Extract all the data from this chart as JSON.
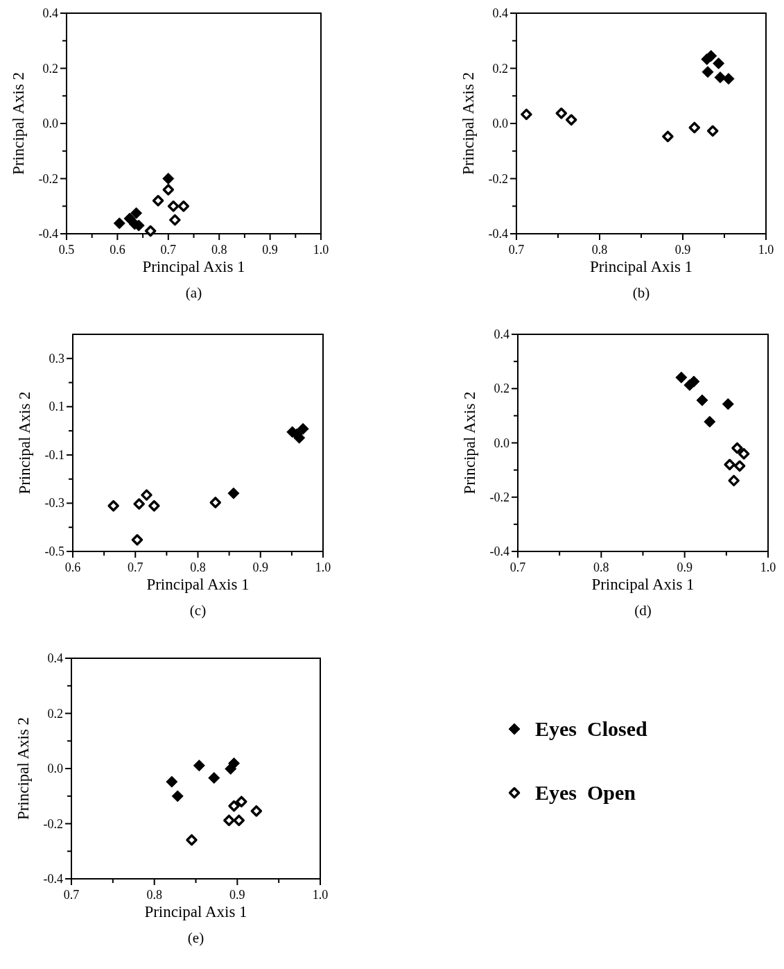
{
  "chart_data": [
    {
      "type": "scatter",
      "title": "(a)",
      "xlabel": "Principal Axis 1",
      "ylabel": "Principal Axis 2",
      "xlim": [
        0.5,
        1.0
      ],
      "ylim": [
        -0.4,
        0.4
      ],
      "marker": "diamond",
      "xticks": [
        {
          "value": 0.5,
          "label": "0.5"
        },
        {
          "value": 0.55,
          "label": null
        },
        {
          "value": 0.6,
          "label": "0.6"
        },
        {
          "value": 0.65,
          "label": null
        },
        {
          "value": 0.7,
          "label": "0.7"
        },
        {
          "value": 0.75,
          "label": null
        },
        {
          "value": 0.8,
          "label": "0.8"
        },
        {
          "value": 0.85,
          "label": null
        },
        {
          "value": 0.9,
          "label": "0.9"
        },
        {
          "value": 0.95,
          "label": null
        },
        {
          "value": 1.0,
          "label": "1.0"
        }
      ],
      "yticks": [
        {
          "value": -0.4,
          "label": "-0.4"
        },
        {
          "value": -0.3,
          "label": null
        },
        {
          "value": -0.2,
          "label": "-0.2"
        },
        {
          "value": -0.1,
          "label": null
        },
        {
          "value": 0,
          "label": "0.0"
        },
        {
          "value": 0.1,
          "label": null
        },
        {
          "value": 0.2,
          "label": "0.2"
        },
        {
          "value": 0.3,
          "label": null
        },
        {
          "value": 0.4,
          "label": "0.4"
        }
      ],
      "series": [
        {
          "color": "#000000",
          "x": [
            0.604,
            0.624,
            0.637,
            0.634,
            0.642,
            0.7
          ],
          "values": [
            -0.362,
            -0.345,
            -0.325,
            -0.365,
            -0.37,
            -0.2
          ]
        },
        {
          "color": "#000000",
          "x": [
            0.68,
            0.7,
            0.71,
            0.73,
            0.713,
            0.665
          ],
          "values": [
            -0.28,
            -0.24,
            -0.3,
            -0.3,
            -0.35,
            -0.39
          ]
        }
      ]
    },
    {
      "type": "scatter",
      "title": "(b)",
      "xlabel": "Principal Axis 1",
      "ylabel": "Principal Axis 2",
      "xlim": [
        0.7,
        1.0
      ],
      "ylim": [
        -0.4,
        0.4
      ],
      "marker": "diamond",
      "xticks": [
        {
          "value": 0.7,
          "label": "0.7"
        },
        {
          "value": 0.75,
          "label": null
        },
        {
          "value": 0.8,
          "label": "0.8"
        },
        {
          "value": 0.85,
          "label": null
        },
        {
          "value": 0.9,
          "label": "0.9"
        },
        {
          "value": 0.95,
          "label": null
        },
        {
          "value": 1.0,
          "label": "1.0"
        }
      ],
      "yticks": [
        {
          "value": -0.4,
          "label": "-0.4"
        },
        {
          "value": -0.3,
          "label": null
        },
        {
          "value": -0.2,
          "label": "-0.2"
        },
        {
          "value": -0.1,
          "label": null
        },
        {
          "value": 0,
          "label": "0.0"
        },
        {
          "value": 0.1,
          "label": null
        },
        {
          "value": 0.2,
          "label": "0.2"
        },
        {
          "value": 0.3,
          "label": null
        },
        {
          "value": 0.4,
          "label": "0.4"
        }
      ],
      "series": [
        {
          "color": "#000000",
          "x": [
            0.929,
            0.934,
            0.943,
            0.93,
            0.945,
            0.955
          ],
          "values": [
            0.233,
            0.245,
            0.218,
            0.187,
            0.167,
            0.162
          ]
        },
        {
          "color": "#000000",
          "x": [
            0.712,
            0.754,
            0.766,
            0.882,
            0.914,
            0.936
          ],
          "values": [
            0.033,
            0.037,
            0.013,
            -0.047,
            -0.015,
            -0.027
          ]
        }
      ]
    },
    {
      "type": "scatter",
      "title": "(c)",
      "xlabel": "Principal Axis 1",
      "ylabel": "Principal Axis 2",
      "xlim": [
        0.6,
        1.0
      ],
      "ylim": [
        -0.5,
        0.4
      ],
      "marker": "diamond",
      "xticks": [
        {
          "value": 0.6,
          "label": "0.6"
        },
        {
          "value": 0.65,
          "label": null
        },
        {
          "value": 0.7,
          "label": "0.7"
        },
        {
          "value": 0.75,
          "label": null
        },
        {
          "value": 0.8,
          "label": "0.8"
        },
        {
          "value": 0.85,
          "label": null
        },
        {
          "value": 0.9,
          "label": "0.9"
        },
        {
          "value": 0.95,
          "label": null
        },
        {
          "value": 1.0,
          "label": "1.0"
        }
      ],
      "yticks": [
        {
          "value": -0.5,
          "label": "-0.5"
        },
        {
          "value": -0.4,
          "label": null
        },
        {
          "value": -0.3,
          "label": "-0.3"
        },
        {
          "value": -0.2,
          "label": null
        },
        {
          "value": -0.1,
          "label": "-0.1"
        },
        {
          "value": 0,
          "label": null
        },
        {
          "value": 0.1,
          "label": "0.1"
        },
        {
          "value": 0.2,
          "label": null
        },
        {
          "value": 0.3,
          "label": "0.3"
        }
      ],
      "series": [
        {
          "color": "#000000",
          "x": [
            0.857,
            0.951,
            0.968,
            0.962,
            0.958
          ],
          "values": [
            -0.259,
            -0.005,
            0.008,
            -0.029,
            -0.014
          ]
        },
        {
          "color": "#000000",
          "x": [
            0.665,
            0.706,
            0.718,
            0.73,
            0.703,
            0.828
          ],
          "values": [
            -0.311,
            -0.303,
            -0.266,
            -0.311,
            -0.452,
            -0.297
          ]
        }
      ]
    },
    {
      "type": "scatter",
      "title": "(d)",
      "xlabel": "Principal Axis 1",
      "ylabel": "Principal Axis 2",
      "xlim": [
        0.7,
        1.0
      ],
      "ylim": [
        -0.4,
        0.4
      ],
      "marker": "diamond",
      "xticks": [
        {
          "value": 0.7,
          "label": "0.7"
        },
        {
          "value": 0.75,
          "label": null
        },
        {
          "value": 0.8,
          "label": "0.8"
        },
        {
          "value": 0.85,
          "label": null
        },
        {
          "value": 0.9,
          "label": "0.9"
        },
        {
          "value": 0.95,
          "label": null
        },
        {
          "value": 1.0,
          "label": "1.0"
        }
      ],
      "yticks": [
        {
          "value": -0.4,
          "label": "-0.4"
        },
        {
          "value": -0.3,
          "label": null
        },
        {
          "value": -0.2,
          "label": "-0.2"
        },
        {
          "value": -0.1,
          "label": null
        },
        {
          "value": 0,
          "label": "0.0"
        },
        {
          "value": 0.1,
          "label": null
        },
        {
          "value": 0.2,
          "label": "0.2"
        },
        {
          "value": 0.3,
          "label": null
        },
        {
          "value": 0.4,
          "label": "0.4"
        }
      ],
      "series": [
        {
          "color": "#000000",
          "x": [
            0.896,
            0.906,
            0.911,
            0.921,
            0.93,
            0.952
          ],
          "values": [
            0.241,
            0.213,
            0.226,
            0.157,
            0.078,
            0.143
          ]
        },
        {
          "color": "#000000",
          "x": [
            0.963,
            0.971,
            0.954,
            0.966,
            0.959
          ],
          "values": [
            -0.019,
            -0.04,
            -0.08,
            -0.085,
            -0.139
          ]
        }
      ]
    },
    {
      "type": "scatter",
      "title": "(e)",
      "xlabel": "Principal Axis 1",
      "ylabel": "Principal Axis 2",
      "xlim": [
        0.7,
        1.0
      ],
      "ylim": [
        -0.4,
        0.4
      ],
      "marker": "diamond",
      "legend": "right",
      "xticks": [
        {
          "value": 0.7,
          "label": "0.7"
        },
        {
          "value": 0.75,
          "label": null
        },
        {
          "value": 0.8,
          "label": "0.8"
        },
        {
          "value": 0.85,
          "label": null
        },
        {
          "value": 0.9,
          "label": "0.9"
        },
        {
          "value": 0.95,
          "label": null
        },
        {
          "value": 1.0,
          "label": "1.0"
        }
      ],
      "yticks": [
        {
          "value": -0.4,
          "label": "-0.4"
        },
        {
          "value": -0.3,
          "label": null
        },
        {
          "value": -0.2,
          "label": "-0.2"
        },
        {
          "value": -0.1,
          "label": null
        },
        {
          "value": 0,
          "label": "0.0"
        },
        {
          "value": 0.1,
          "label": null
        },
        {
          "value": 0.2,
          "label": "0.2"
        },
        {
          "value": 0.3,
          "label": null
        },
        {
          "value": 0.4,
          "label": "0.4"
        }
      ],
      "series": [
        {
          "name": "Eyes  Closed",
          "color": "#000000",
          "x": [
            0.821,
            0.828,
            0.854,
            0.872,
            0.892,
            0.896
          ],
          "values": [
            -0.048,
            -0.1,
            0.011,
            -0.034,
            -0.001,
            0.019
          ]
        },
        {
          "name": "Eyes  Open",
          "color": "#000000",
          "x": [
            0.896,
            0.905,
            0.923,
            0.89,
            0.902,
            0.845
          ],
          "values": [
            -0.136,
            -0.12,
            -0.154,
            -0.188,
            -0.188,
            -0.259
          ]
        }
      ]
    }
  ]
}
